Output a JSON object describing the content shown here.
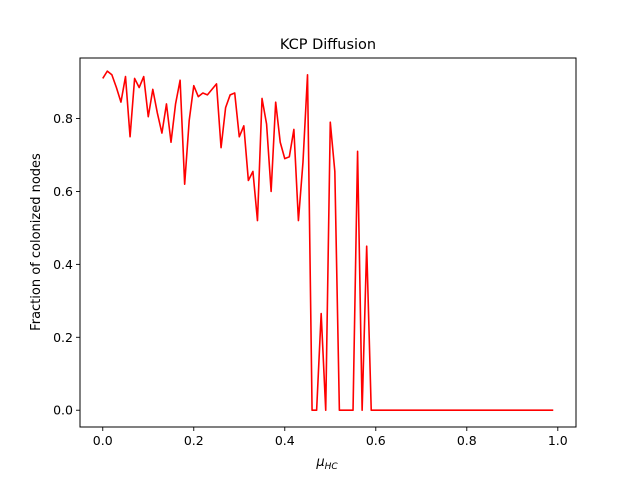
{
  "chart_data": {
    "type": "line",
    "title": "KCP Diffusion",
    "xlabel_main": "μ",
    "xlabel_sub": "HC",
    "ylabel": "Fraction of colonized nodes",
    "xlim": [
      -0.05,
      1.04
    ],
    "ylim": [
      -0.046,
      0.966
    ],
    "xticks": [
      0.0,
      0.2,
      0.4,
      0.6,
      0.8,
      1.0
    ],
    "xtick_labels": [
      "0.0",
      "0.2",
      "0.4",
      "0.6",
      "0.8",
      "1.0"
    ],
    "yticks": [
      0.0,
      0.2,
      0.4,
      0.6,
      0.8
    ],
    "ytick_labels": [
      "0.0",
      "0.2",
      "0.4",
      "0.6",
      "0.8"
    ],
    "grid": false,
    "legend": "none",
    "series": [
      {
        "color": "#ff0000",
        "x": [
          0.0,
          0.01,
          0.02,
          0.03,
          0.04,
          0.05,
          0.06,
          0.07,
          0.08,
          0.09,
          0.1,
          0.11,
          0.12,
          0.13,
          0.14,
          0.15,
          0.16,
          0.17,
          0.18,
          0.19,
          0.2,
          0.21,
          0.22,
          0.23,
          0.24,
          0.25,
          0.26,
          0.27,
          0.28,
          0.29,
          0.3,
          0.31,
          0.32,
          0.33,
          0.34,
          0.35,
          0.36,
          0.37,
          0.38,
          0.39,
          0.4,
          0.41,
          0.42,
          0.43,
          0.44,
          0.45,
          0.46,
          0.47,
          0.48,
          0.49,
          0.5,
          0.51,
          0.52,
          0.53,
          0.54,
          0.55,
          0.56,
          0.57,
          0.58,
          0.59,
          0.6,
          0.61,
          0.62,
          0.63,
          0.64,
          0.65,
          0.66,
          0.67,
          0.68,
          0.69,
          0.7,
          0.71,
          0.72,
          0.73,
          0.74,
          0.75,
          0.76,
          0.77,
          0.78,
          0.79,
          0.8,
          0.81,
          0.82,
          0.83,
          0.84,
          0.85,
          0.86,
          0.87,
          0.88,
          0.89,
          0.9,
          0.91,
          0.92,
          0.93,
          0.94,
          0.95,
          0.96,
          0.97,
          0.98,
          0.99
        ],
        "y": [
          0.91,
          0.93,
          0.92,
          0.885,
          0.845,
          0.915,
          0.75,
          0.91,
          0.885,
          0.915,
          0.805,
          0.88,
          0.815,
          0.76,
          0.84,
          0.735,
          0.84,
          0.905,
          0.62,
          0.795,
          0.89,
          0.86,
          0.87,
          0.865,
          0.88,
          0.895,
          0.72,
          0.83,
          0.865,
          0.87,
          0.75,
          0.78,
          0.63,
          0.655,
          0.52,
          0.855,
          0.785,
          0.6,
          0.845,
          0.735,
          0.69,
          0.695,
          0.77,
          0.52,
          0.68,
          0.92,
          0.0,
          0.0,
          0.265,
          0.0,
          0.79,
          0.655,
          0.0,
          0.0,
          0.0,
          0.0,
          0.71,
          0.0,
          0.45,
          0.0,
          0.0,
          0.0,
          0.0,
          0.0,
          0.0,
          0.0,
          0.0,
          0.0,
          0.0,
          0.0,
          0.0,
          0.0,
          0.0,
          0.0,
          0.0,
          0.0,
          0.0,
          0.0,
          0.0,
          0.0,
          0.0,
          0.0,
          0.0,
          0.0,
          0.0,
          0.0,
          0.0,
          0.0,
          0.0,
          0.0,
          0.0,
          0.0,
          0.0,
          0.0,
          0.0,
          0.0,
          0.0,
          0.0,
          0.0,
          0.0
        ]
      }
    ]
  }
}
